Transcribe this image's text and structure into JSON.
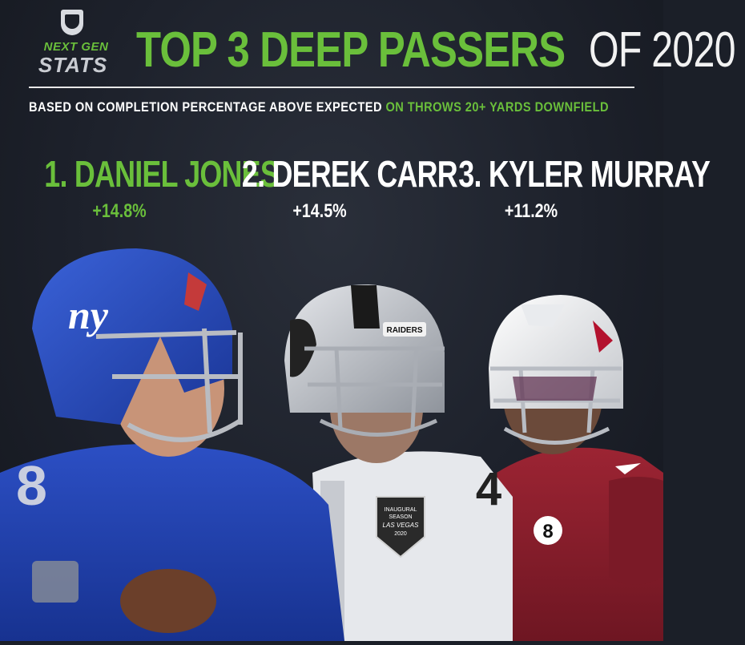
{
  "logo": {
    "line1": "NEXT GEN",
    "line2": "STATS"
  },
  "title": {
    "main": "TOP 3 DEEP PASSERS",
    "rest": "OF 2020"
  },
  "subtitle": {
    "part1": "BASED ON COMPLETION PERCENTAGE ABOVE EXPECTED",
    "part2": "ON THROWS 20+ YARDS DOWNFIELD"
  },
  "players": [
    {
      "name": "1. DANIEL JONES",
      "stat": "+14.8%"
    },
    {
      "name": "2. DEREK CARR",
      "stat": "+14.5%"
    },
    {
      "name": "3. KYLER MURRAY",
      "stat": "+11.2%"
    }
  ],
  "photo": {
    "helmet_logo_1": "ny",
    "helmet_text_2": "RAIDERS",
    "jersey_number_1": "8",
    "jersey_number_2": "4",
    "jersey_number_3": "8",
    "patch_2_line1": "INAUGURAL",
    "patch_2_line2": "SEASON",
    "patch_2_line3": "LAS VEGAS",
    "patch_2_line4": "2020"
  },
  "colors": {
    "accent": "#6abf3b",
    "background": "#1d212b",
    "giants_blue": "#1f3fa8",
    "cardinals_red": "#8a1e2c"
  }
}
